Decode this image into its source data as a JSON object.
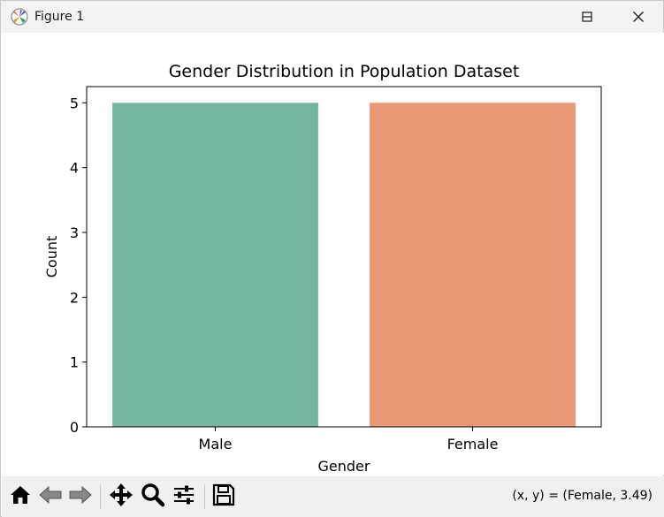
{
  "window": {
    "title": "Figure 1",
    "icons": [
      "app-icon",
      "minimize-icon",
      "maximize-icon",
      "close-icon"
    ]
  },
  "toolbar": {
    "tools": [
      "home-icon",
      "back-icon",
      "forward-icon",
      "pan-icon",
      "zoom-icon",
      "configure-subplots-icon",
      "save-icon"
    ],
    "coords_text": "(x, y) = (Female, 3.49)"
  },
  "chart_data": {
    "type": "bar",
    "title": "Gender Distribution in Population Dataset",
    "xlabel": "Gender",
    "ylabel": "Count",
    "categories": [
      "Male",
      "Female"
    ],
    "values": [
      5,
      5
    ],
    "colors": [
      "#73b5a0",
      "#e99875"
    ],
    "ylim": [
      0,
      5.25
    ],
    "yticks": [
      "0",
      "1",
      "2",
      "3",
      "4",
      "5"
    ],
    "grid": false
  }
}
